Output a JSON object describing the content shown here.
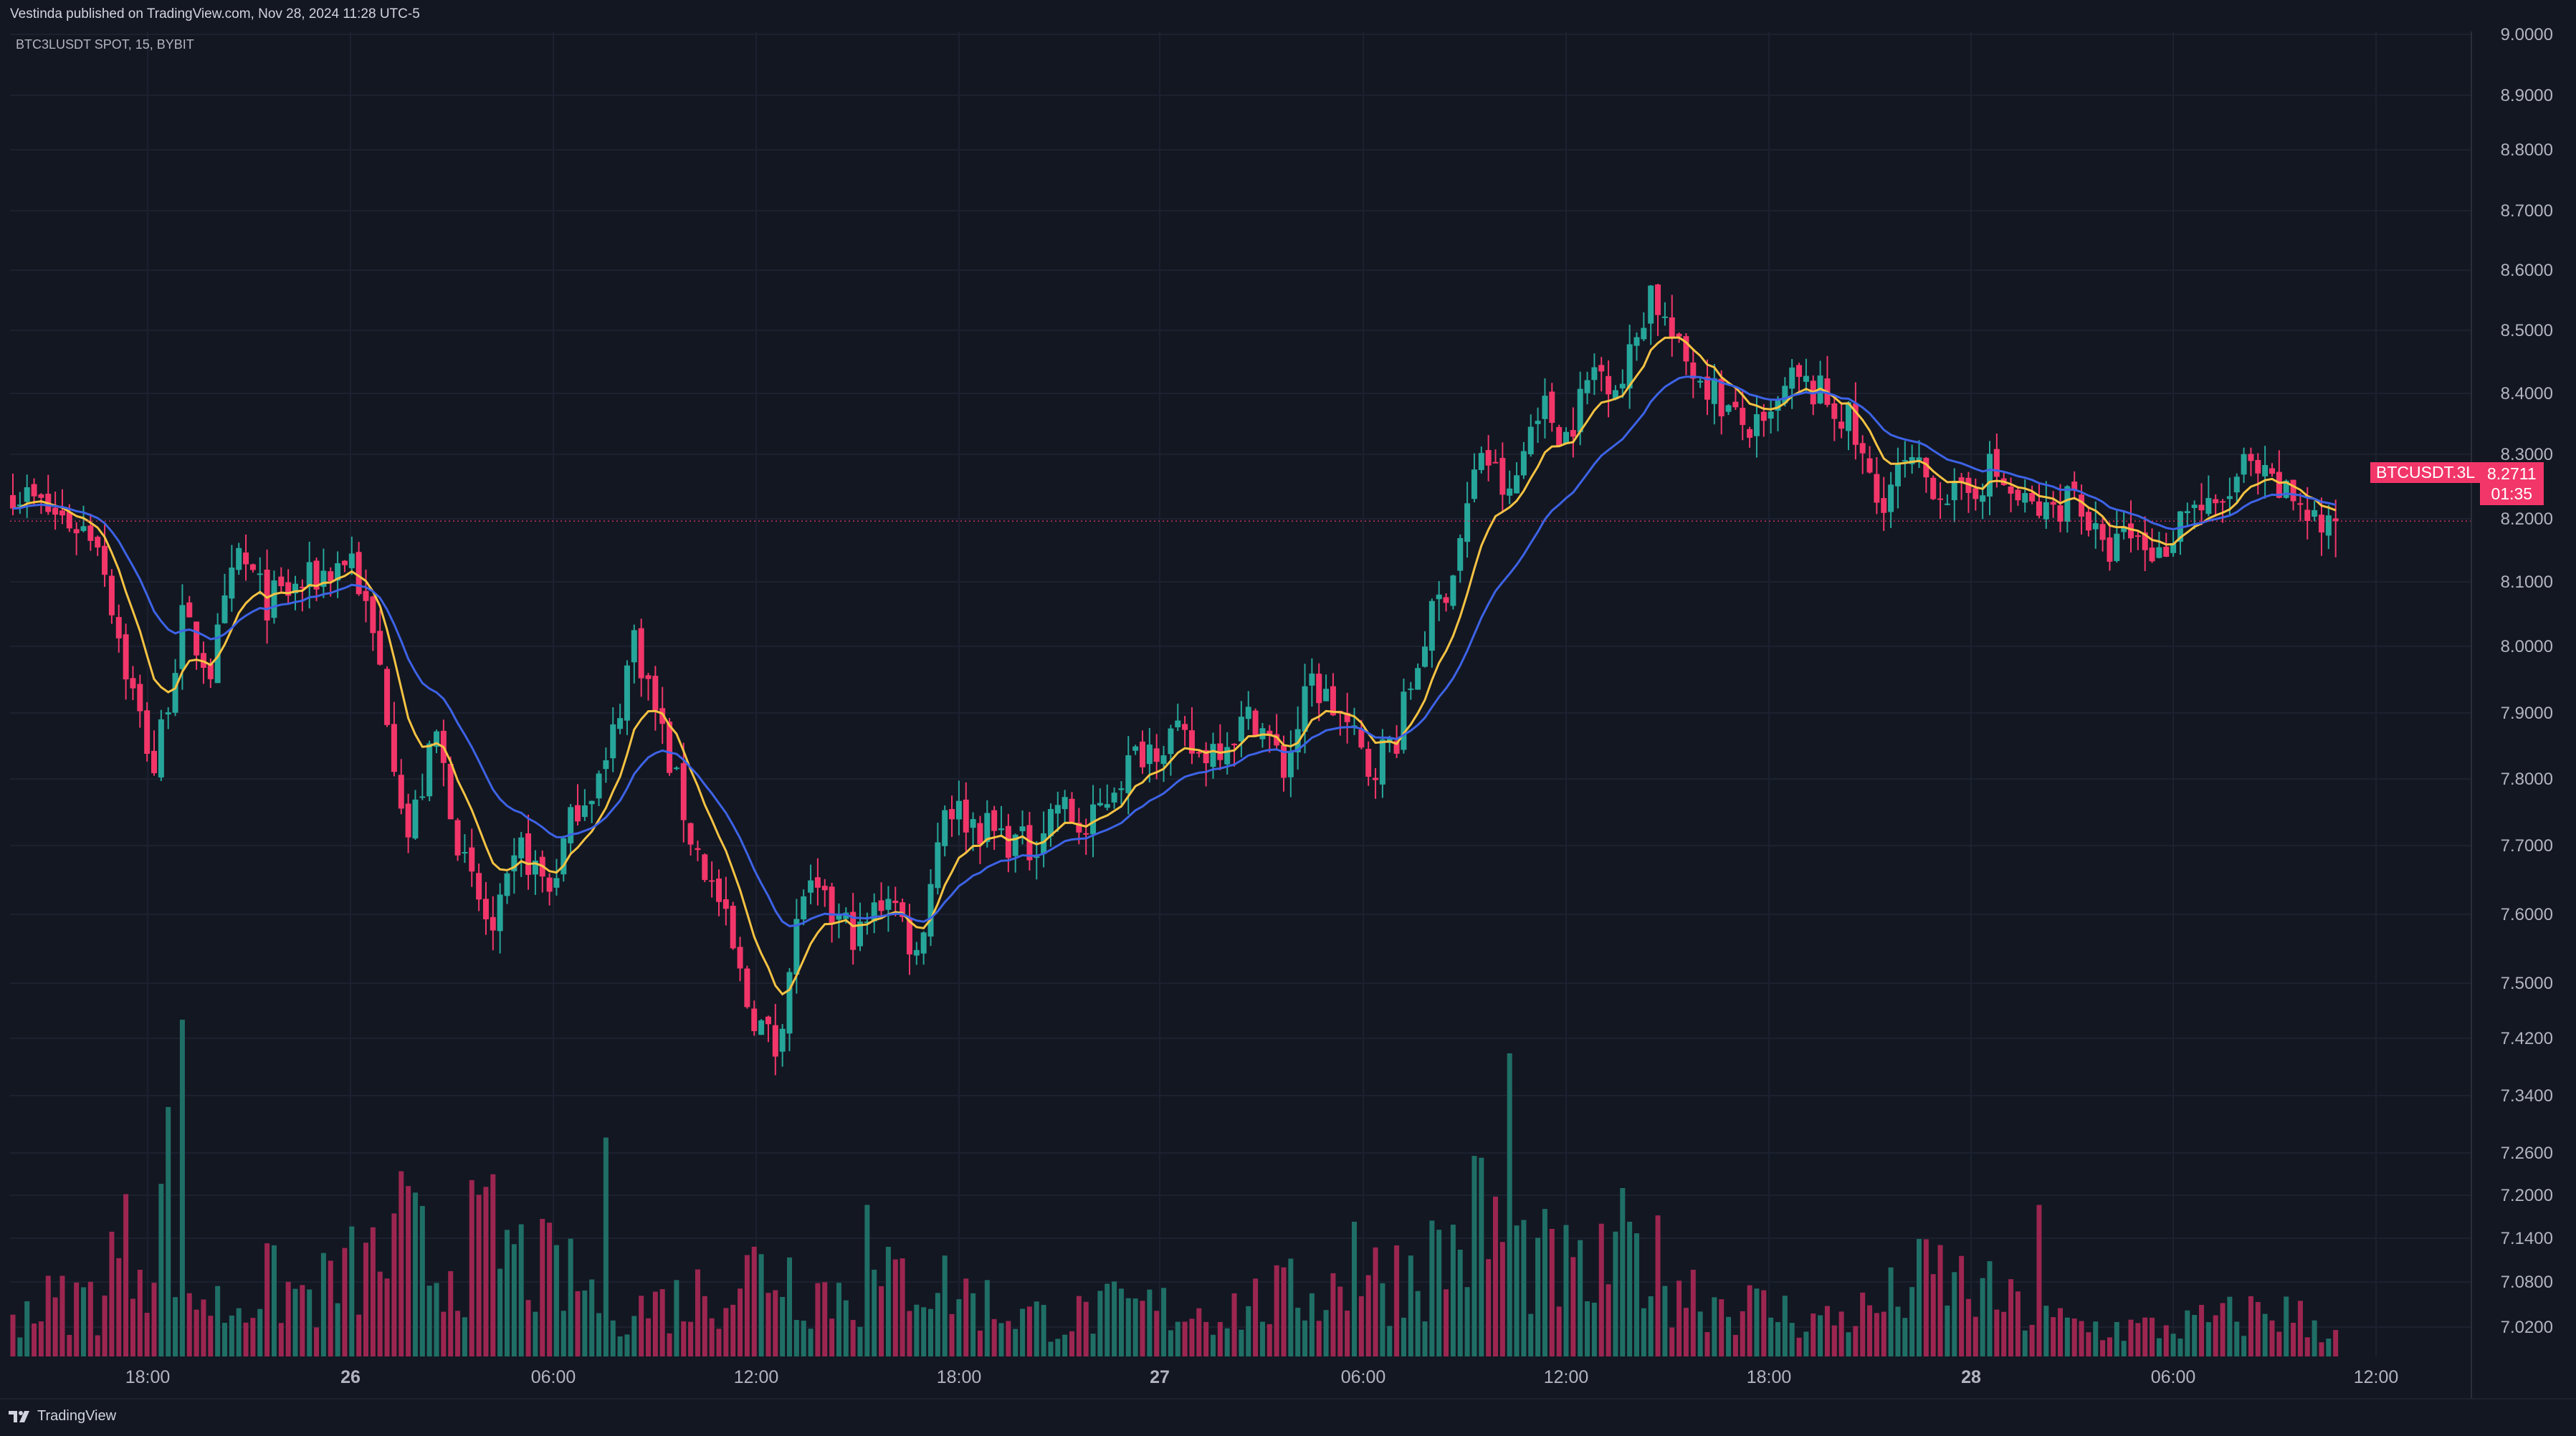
{
  "header": {
    "published": "Vestinda published on TradingView.com, Nov 28, 2024 11:28 UTC-5",
    "symbol_line": "BTC3LUSDT SPOT, 15, BYBIT"
  },
  "price_tag": {
    "symbol": "BTCUSDT.3L",
    "price": "8.2711",
    "countdown": "01:35"
  },
  "footer": {
    "brand": "TradingView"
  },
  "colors": {
    "background": "#131722",
    "grid": "#1c2130",
    "up": "#26a69a",
    "down": "#f23669",
    "vol_up": "#1f6f66",
    "vol_down": "#9c2650",
    "ema_fast": "#f6c343",
    "ema_slow": "#3d63e6",
    "axis_text": "#b2b5be"
  },
  "chart_data": {
    "type": "candlestick",
    "title": "BTC3LUSDT SPOT, 15, BYBIT",
    "interval": "15",
    "y_axis": {
      "side": "right",
      "ticks": [
        "9.0000",
        "8.9000",
        "8.8000",
        "8.7000",
        "8.6000",
        "8.5000",
        "8.4000",
        "8.3000",
        "8.2000",
        "8.1000",
        "8.0000",
        "7.9000",
        "7.8000",
        "7.7000",
        "7.6000",
        "7.5000",
        "7.4200",
        "7.3400",
        "7.2600",
        "7.2000",
        "7.1400",
        "7.0800",
        "7.0200"
      ]
    },
    "x_axis": {
      "ticks": [
        {
          "label": "18:00",
          "bold": false
        },
        {
          "label": "26",
          "bold": true
        },
        {
          "label": "06:00",
          "bold": false
        },
        {
          "label": "12:00",
          "bold": false
        },
        {
          "label": "18:00",
          "bold": false
        },
        {
          "label": "27",
          "bold": true
        },
        {
          "label": "06:00",
          "bold": false
        },
        {
          "label": "12:00",
          "bold": false
        },
        {
          "label": "18:00",
          "bold": false
        },
        {
          "label": "28",
          "bold": true
        },
        {
          "label": "06:00",
          "bold": false
        },
        {
          "label": "12:00",
          "bold": false
        }
      ]
    },
    "price_anchors": [
      [
        0,
        8.32
      ],
      [
        6,
        8.28
      ],
      [
        12,
        8.25
      ],
      [
        16,
        8.05
      ],
      [
        20,
        7.9
      ],
      [
        24,
        8.12
      ],
      [
        28,
        8.05
      ],
      [
        32,
        8.22
      ],
      [
        36,
        8.15
      ],
      [
        42,
        8.18
      ],
      [
        48,
        8.22
      ],
      [
        52,
        8.05
      ],
      [
        56,
        7.8
      ],
      [
        60,
        7.95
      ],
      [
        64,
        7.75
      ],
      [
        68,
        7.65
      ],
      [
        72,
        7.78
      ],
      [
        76,
        7.72
      ],
      [
        80,
        7.85
      ],
      [
        84,
        7.9
      ],
      [
        88,
        8.1
      ],
      [
        92,
        7.95
      ],
      [
        96,
        7.8
      ],
      [
        100,
        7.7
      ],
      [
        104,
        7.55
      ],
      [
        108,
        7.48
      ],
      [
        112,
        7.72
      ],
      [
        116,
        7.68
      ],
      [
        120,
        7.65
      ],
      [
        124,
        7.72
      ],
      [
        128,
        7.62
      ],
      [
        132,
        7.85
      ],
      [
        136,
        7.82
      ],
      [
        140,
        7.8
      ],
      [
        144,
        7.78
      ],
      [
        148,
        7.85
      ],
      [
        152,
        7.8
      ],
      [
        156,
        7.88
      ],
      [
        160,
        7.93
      ],
      [
        164,
        7.95
      ],
      [
        168,
        7.92
      ],
      [
        172,
        7.95
      ],
      [
        176,
        7.98
      ],
      [
        180,
        7.9
      ],
      [
        184,
        8.03
      ],
      [
        188,
        7.98
      ],
      [
        192,
        7.9
      ],
      [
        196,
        7.95
      ],
      [
        200,
        8.1
      ],
      [
        204,
        8.2
      ],
      [
        208,
        8.38
      ],
      [
        212,
        8.3
      ],
      [
        216,
        8.45
      ],
      [
        220,
        8.4
      ],
      [
        224,
        8.5
      ],
      [
        228,
        8.48
      ],
      [
        232,
        8.62
      ],
      [
        236,
        8.52
      ],
      [
        240,
        8.48
      ],
      [
        244,
        8.42
      ],
      [
        248,
        8.4
      ],
      [
        252,
        8.48
      ],
      [
        256,
        8.46
      ],
      [
        260,
        8.42
      ],
      [
        264,
        8.3
      ],
      [
        268,
        8.35
      ],
      [
        272,
        8.33
      ],
      [
        276,
        8.3
      ],
      [
        280,
        8.35
      ],
      [
        284,
        8.3
      ],
      [
        288,
        8.28
      ],
      [
        292,
        8.32
      ],
      [
        296,
        8.22
      ],
      [
        300,
        8.25
      ],
      [
        304,
        8.22
      ],
      [
        308,
        8.3
      ],
      [
        312,
        8.28
      ],
      [
        316,
        8.35
      ],
      [
        320,
        8.32
      ],
      [
        324,
        8.3
      ],
      [
        328,
        8.25
      ]
    ],
    "volume_profile": [
      [
        0,
        0.2
      ],
      [
        12,
        0.25
      ],
      [
        14,
        0.4
      ],
      [
        16,
        0.45
      ],
      [
        20,
        0.5
      ],
      [
        22,
        0.75
      ],
      [
        24,
        0.3
      ],
      [
        30,
        0.2
      ],
      [
        36,
        0.3
      ],
      [
        42,
        0.25
      ],
      [
        48,
        0.35
      ],
      [
        52,
        0.4
      ],
      [
        56,
        0.5
      ],
      [
        60,
        0.35
      ],
      [
        64,
        0.45
      ],
      [
        68,
        0.5
      ],
      [
        72,
        0.4
      ],
      [
        80,
        0.3
      ],
      [
        88,
        0.2
      ],
      [
        96,
        0.25
      ],
      [
        104,
        0.35
      ],
      [
        108,
        0.4
      ],
      [
        112,
        0.3
      ],
      [
        120,
        0.25
      ],
      [
        128,
        0.35
      ],
      [
        132,
        0.3
      ],
      [
        140,
        0.2
      ],
      [
        148,
        0.15
      ],
      [
        156,
        0.2
      ],
      [
        164,
        0.2
      ],
      [
        172,
        0.2
      ],
      [
        180,
        0.25
      ],
      [
        188,
        0.3
      ],
      [
        196,
        0.35
      ],
      [
        204,
        0.45
      ],
      [
        208,
        0.6
      ],
      [
        212,
        0.45
      ],
      [
        220,
        0.35
      ],
      [
        224,
        0.3
      ],
      [
        228,
        0.5
      ],
      [
        232,
        0.4
      ],
      [
        240,
        0.25
      ],
      [
        248,
        0.2
      ],
      [
        256,
        0.15
      ],
      [
        264,
        0.2
      ],
      [
        272,
        0.35
      ],
      [
        280,
        0.25
      ],
      [
        288,
        0.15
      ],
      [
        296,
        0.12
      ],
      [
        304,
        0.12
      ],
      [
        312,
        0.15
      ],
      [
        320,
        0.2
      ],
      [
        328,
        0.12
      ]
    ],
    "volume_spikes": [
      [
        24,
        1.0
      ],
      [
        212,
        0.9
      ],
      [
        121,
        0.45
      ],
      [
        228,
        0.5
      ],
      [
        55,
        0.55
      ],
      [
        84,
        0.65
      ],
      [
        229,
        0.4
      ],
      [
        190,
        0.4
      ],
      [
        287,
        0.45
      ]
    ],
    "indicators": [
      {
        "type": "EMA",
        "period": 9,
        "color": "#f6c343"
      },
      {
        "type": "EMA",
        "period": 21,
        "color": "#3d63e6"
      }
    ],
    "last_price": 8.2711,
    "grid": true
  }
}
